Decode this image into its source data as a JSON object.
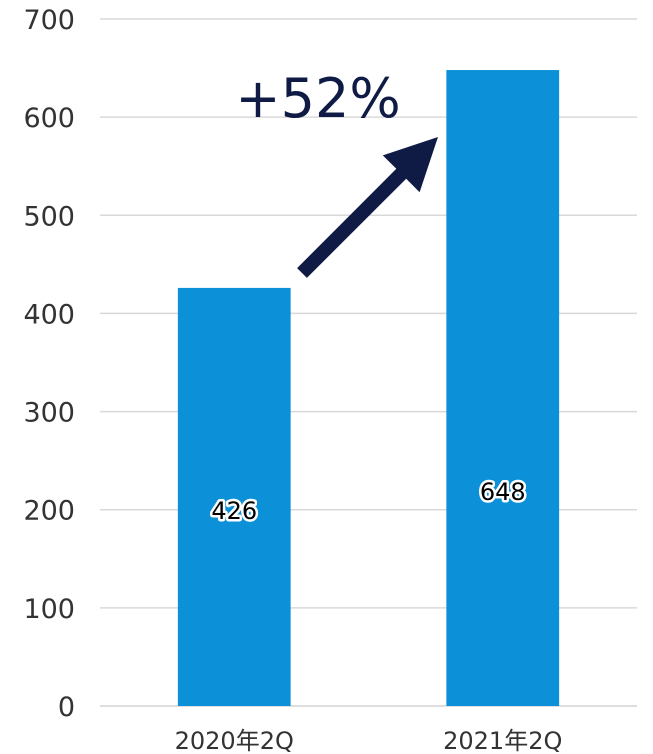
{
  "chart_data": {
    "type": "bar",
    "categories": [
      "2020年2Q",
      "2021年2Q"
    ],
    "values": [
      426,
      648
    ],
    "data_labels": [
      "426",
      "648"
    ],
    "ylim": [
      0,
      700
    ],
    "yticks": [
      0,
      100,
      200,
      300,
      400,
      500,
      600,
      700
    ],
    "grid": true,
    "bar_color": "#0c91d8",
    "annotation": {
      "text": "+52%",
      "color": "#0f1b45",
      "from_category": 0,
      "to_category": 1
    }
  }
}
